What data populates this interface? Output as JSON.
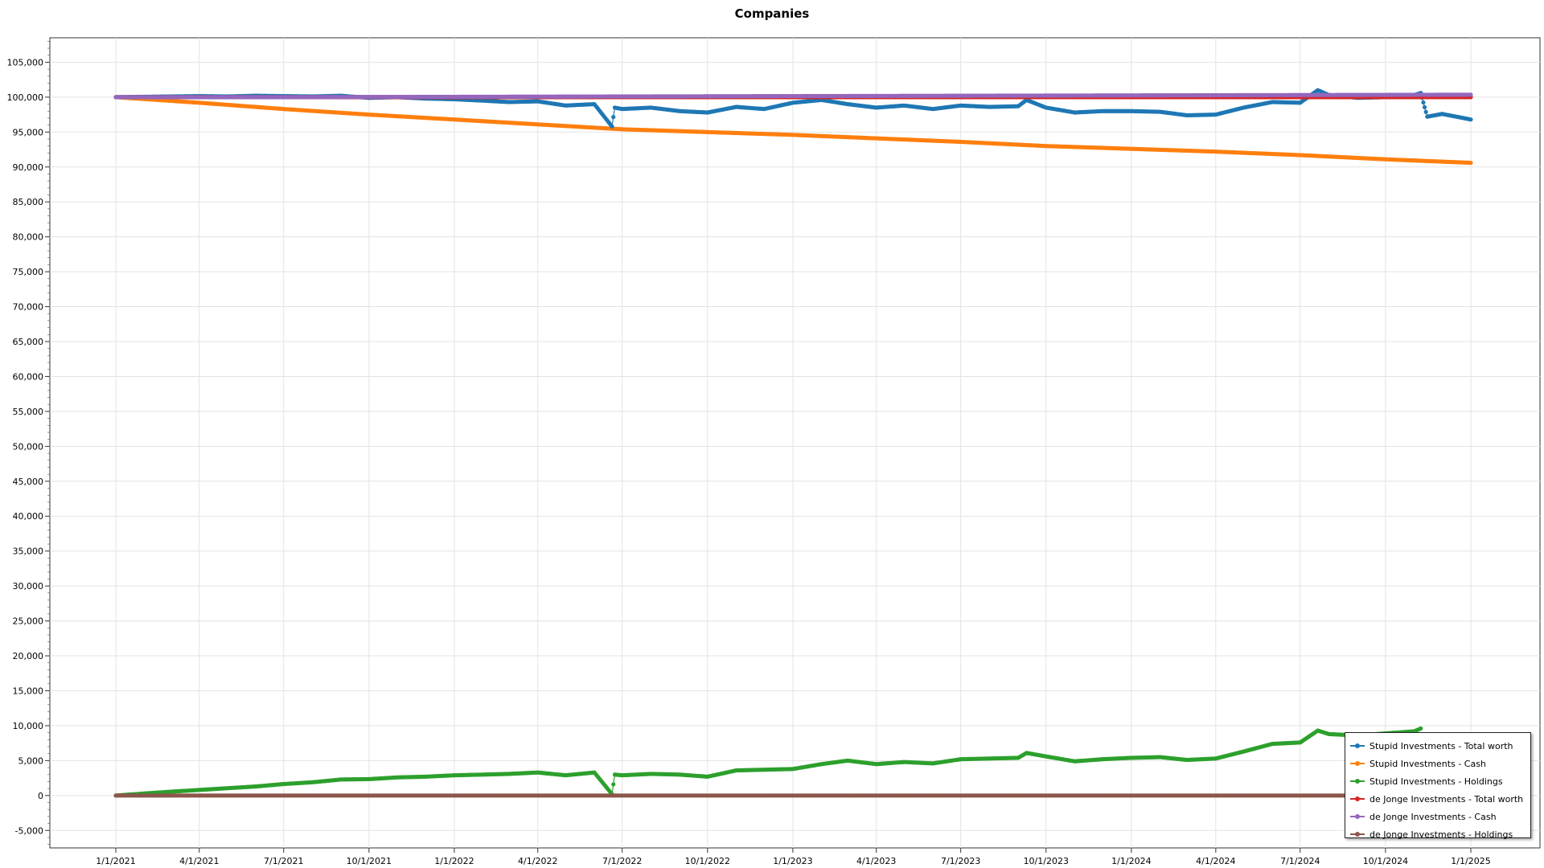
{
  "chart_data": {
    "type": "line",
    "title": "Companies",
    "xlabel": "",
    "ylabel": "",
    "x_range": [
      "1/1/2021",
      "1/1/2025"
    ],
    "x_ticks": [
      "1/1/2021",
      "4/1/2021",
      "7/1/2021",
      "10/1/2021",
      "1/1/2022",
      "4/1/2022",
      "7/1/2022",
      "10/1/2022",
      "1/1/2023",
      "4/1/2023",
      "7/1/2023",
      "10/1/2023",
      "1/1/2024",
      "4/1/2024",
      "7/1/2024",
      "10/1/2024",
      "1/1/2025"
    ],
    "ylim": [
      -7500,
      108500
    ],
    "y_ticks": [
      "-5,000",
      "0",
      "5,000",
      "10,000",
      "15,000",
      "20,000",
      "25,000",
      "30,000",
      "35,000",
      "40,000",
      "45,000",
      "50,000",
      "55,000",
      "60,000",
      "65,000",
      "70,000",
      "75,000",
      "80,000",
      "85,000",
      "90,000",
      "95,000",
      "100,000",
      "105,000"
    ],
    "grid": true,
    "legend_position": "bottom-right",
    "series": [
      {
        "name": "Stupid Investments - Total worth",
        "color": "#1f77b4",
        "points": [
          [
            "1/1/2021",
            100000
          ],
          [
            "2/1/2021",
            100050
          ],
          [
            "3/1/2021",
            100100
          ],
          [
            "4/1/2021",
            100150
          ],
          [
            "5/1/2021",
            100100
          ],
          [
            "6/1/2021",
            100200
          ],
          [
            "7/1/2021",
            100150
          ],
          [
            "8/1/2021",
            100100
          ],
          [
            "9/1/2021",
            100200
          ],
          [
            "10/1/2021",
            99900
          ],
          [
            "11/1/2021",
            100000
          ],
          [
            "12/1/2021",
            99800
          ],
          [
            "1/1/2022",
            99700
          ],
          [
            "2/1/2022",
            99500
          ],
          [
            "3/1/2022",
            99300
          ],
          [
            "4/1/2022",
            99400
          ],
          [
            "5/1/2022",
            98800
          ],
          [
            "6/1/2022",
            99000
          ],
          [
            "6/20/2022",
            95800
          ],
          [
            "6/23/2022",
            98500
          ],
          [
            "7/1/2022",
            98300
          ],
          [
            "8/1/2022",
            98500
          ],
          [
            "9/1/2022",
            98000
          ],
          [
            "10/1/2022",
            97800
          ],
          [
            "11/1/2022",
            98600
          ],
          [
            "12/1/2022",
            98300
          ],
          [
            "1/1/2023",
            99200
          ],
          [
            "2/1/2023",
            99600
          ],
          [
            "3/1/2023",
            99000
          ],
          [
            "4/1/2023",
            98500
          ],
          [
            "5/1/2023",
            98800
          ],
          [
            "6/1/2023",
            98300
          ],
          [
            "7/1/2023",
            98800
          ],
          [
            "8/1/2023",
            98600
          ],
          [
            "9/1/2023",
            98700
          ],
          [
            "9/10/2023",
            99600
          ],
          [
            "10/1/2023",
            98500
          ],
          [
            "11/1/2023",
            97800
          ],
          [
            "12/1/2023",
            98000
          ],
          [
            "1/1/2024",
            98000
          ],
          [
            "2/1/2024",
            97900
          ],
          [
            "3/1/2024",
            97400
          ],
          [
            "4/1/2024",
            97500
          ],
          [
            "5/1/2024",
            98500
          ],
          [
            "6/1/2024",
            99300
          ],
          [
            "7/1/2024",
            99200
          ],
          [
            "7/20/2024",
            101000
          ],
          [
            "8/1/2024",
            100300
          ],
          [
            "9/1/2024",
            99900
          ],
          [
            "10/1/2024",
            100000
          ],
          [
            "11/1/2024",
            100300
          ],
          [
            "11/8/2024",
            100600
          ],
          [
            "11/15/2024",
            97200
          ],
          [
            "12/1/2024",
            97600
          ],
          [
            "1/1/2025",
            96800
          ]
        ]
      },
      {
        "name": "Stupid Investments - Cash",
        "color": "#ff7f0e",
        "points": [
          [
            "1/1/2021",
            100000
          ],
          [
            "4/1/2021",
            99200
          ],
          [
            "7/1/2021",
            98300
          ],
          [
            "10/1/2021",
            97500
          ],
          [
            "1/1/2022",
            96800
          ],
          [
            "4/1/2022",
            96100
          ],
          [
            "7/1/2022",
            95400
          ],
          [
            "10/1/2022",
            95000
          ],
          [
            "1/1/2023",
            94600
          ],
          [
            "4/1/2023",
            94100
          ],
          [
            "7/1/2023",
            93600
          ],
          [
            "10/1/2023",
            93000
          ],
          [
            "1/1/2024",
            92600
          ],
          [
            "4/1/2024",
            92200
          ],
          [
            "7/1/2024",
            91700
          ],
          [
            "10/1/2024",
            91100
          ],
          [
            "1/1/2025",
            90600
          ]
        ]
      },
      {
        "name": "Stupid Investments - Holdings",
        "color": "#2ca02c",
        "points": [
          [
            "1/1/2021",
            0
          ],
          [
            "2/1/2021",
            300
          ],
          [
            "3/1/2021",
            550
          ],
          [
            "4/1/2021",
            800
          ],
          [
            "5/1/2021",
            1050
          ],
          [
            "6/1/2021",
            1300
          ],
          [
            "7/1/2021",
            1650
          ],
          [
            "8/1/2021",
            1900
          ],
          [
            "9/1/2021",
            2300
          ],
          [
            "10/1/2021",
            2350
          ],
          [
            "11/1/2021",
            2600
          ],
          [
            "12/1/2021",
            2700
          ],
          [
            "1/1/2022",
            2900
          ],
          [
            "2/1/2022",
            3000
          ],
          [
            "3/1/2022",
            3100
          ],
          [
            "4/1/2022",
            3300
          ],
          [
            "5/1/2022",
            2900
          ],
          [
            "6/1/2022",
            3300
          ],
          [
            "6/20/2022",
            200
          ],
          [
            "6/23/2022",
            3000
          ],
          [
            "7/1/2022",
            2900
          ],
          [
            "8/1/2022",
            3100
          ],
          [
            "9/1/2022",
            3000
          ],
          [
            "10/1/2022",
            2700
          ],
          [
            "11/1/2022",
            3600
          ],
          [
            "12/1/2022",
            3700
          ],
          [
            "1/1/2023",
            3800
          ],
          [
            "2/1/2023",
            4500
          ],
          [
            "3/1/2023",
            5000
          ],
          [
            "4/1/2023",
            4500
          ],
          [
            "5/1/2023",
            4800
          ],
          [
            "6/1/2023",
            4600
          ],
          [
            "7/1/2023",
            5200
          ],
          [
            "8/1/2023",
            5300
          ],
          [
            "9/1/2023",
            5400
          ],
          [
            "9/10/2023",
            6100
          ],
          [
            "10/1/2023",
            5600
          ],
          [
            "11/1/2023",
            4900
          ],
          [
            "12/1/2023",
            5200
          ],
          [
            "1/1/2024",
            5400
          ],
          [
            "2/1/2024",
            5500
          ],
          [
            "3/1/2024",
            5100
          ],
          [
            "4/1/2024",
            5300
          ],
          [
            "5/1/2024",
            6300
          ],
          [
            "6/1/2024",
            7400
          ],
          [
            "7/1/2024",
            7600
          ],
          [
            "7/20/2024",
            9300
          ],
          [
            "8/1/2024",
            8800
          ],
          [
            "9/1/2024",
            8600
          ],
          [
            "10/1/2024",
            8900
          ],
          [
            "11/1/2024",
            9200
          ],
          [
            "11/8/2024",
            9600
          ]
        ]
      },
      {
        "name": "de Jonge Investments - Total worth",
        "color": "#d62728",
        "points": [
          [
            "1/1/2021",
            100000
          ],
          [
            "1/1/2023",
            100000
          ],
          [
            "1/1/2025",
            100000
          ]
        ]
      },
      {
        "name": "de Jonge Investments - Cash",
        "color": "#9467bd",
        "points": [
          [
            "1/1/2021",
            100000
          ],
          [
            "7/1/2021",
            100000
          ],
          [
            "1/1/2022",
            100050
          ],
          [
            "7/1/2022",
            100100
          ],
          [
            "1/1/2023",
            100150
          ],
          [
            "7/1/2023",
            100200
          ],
          [
            "1/1/2024",
            100250
          ],
          [
            "7/1/2024",
            100300
          ],
          [
            "1/1/2025",
            100350
          ]
        ]
      },
      {
        "name": "de Jonge Investments - Holdings",
        "color": "#8c564b",
        "points": [
          [
            "1/1/2021",
            0
          ],
          [
            "1/1/2023",
            0
          ],
          [
            "1/1/2025",
            0
          ]
        ]
      }
    ]
  }
}
